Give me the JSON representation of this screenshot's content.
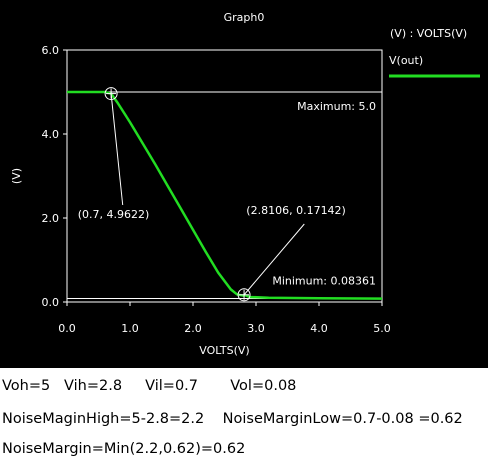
{
  "chart_data": {
    "type": "line",
    "title": "Graph0",
    "xlabel": "VOLTS(V)",
    "ylabel": "(V)",
    "xlim": [
      0.0,
      5.0
    ],
    "ylim": [
      0.0,
      6.0
    ],
    "x_ticks": [
      "0.0",
      "1.0",
      "2.0",
      "3.0",
      "4.0",
      "5.0"
    ],
    "y_ticks": [
      "0.0",
      "2.0",
      "4.0",
      "6.0"
    ],
    "grid": false,
    "legend": {
      "position": "top-right",
      "header": "(V) : VOLTS(V)"
    },
    "series": [
      {
        "name": "V(out)",
        "color": "#22dd22",
        "x": [
          0.0,
          0.6,
          0.7,
          0.8,
          1.0,
          1.2,
          1.4,
          1.6,
          1.8,
          2.0,
          2.2,
          2.4,
          2.6,
          2.7,
          2.8,
          2.8106,
          2.9,
          3.2,
          4.0,
          5.0
        ],
        "y": [
          5.0,
          5.0,
          4.96,
          4.75,
          4.28,
          3.78,
          3.28,
          2.76,
          2.24,
          1.72,
          1.2,
          0.7,
          0.3,
          0.18,
          0.15,
          0.17,
          0.12,
          0.1,
          0.09,
          0.08
        ]
      }
    ],
    "reference_lines": [
      {
        "axis": "y",
        "value": 5.0,
        "label": "Maximum: 5.0",
        "color": "#ffffff"
      },
      {
        "axis": "y",
        "value": 0.0836,
        "label": "Minimum: 0.08361",
        "color": "#ffffff"
      }
    ],
    "annotations": [
      {
        "x": 0.7,
        "y": 4.9622,
        "label": "(0.7, 4.9622)",
        "label_x": 0.17,
        "label_y": 2.0
      },
      {
        "x": 2.8106,
        "y": 0.17142,
        "label": "(2.8106, 0.17142)",
        "label_x": 3.1,
        "label_y": 2.0
      }
    ]
  },
  "notes": [
    "Voh=5   Vih=2.8     Vil=0.7       Vol=0.08",
    "NoiseMaginHigh=5-2.8=2.2    NoiseMarginLow=0.7-0.08 =0.62",
    "NoiseMargin=Min(2.2,0.62)=0.62"
  ]
}
